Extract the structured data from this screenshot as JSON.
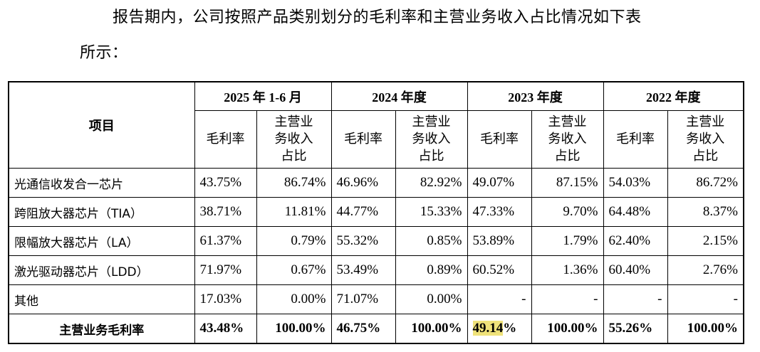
{
  "intro": {
    "line1": "报告期内，公司按照产品类别划分的毛利率和主营业务收入占比情况如下表",
    "line2": "所示："
  },
  "table": {
    "item_header": "项目",
    "periods": [
      "2025 年 1-6 月",
      "2024 年度",
      "2023 年度",
      "2022 年度"
    ],
    "sub_margin": "毛利率",
    "sub_share_lines": [
      "主营业",
      "务收入",
      "占比"
    ],
    "rows": [
      {
        "name": "光通信收发合一芯片",
        "cells": [
          "43.75%",
          "86.74%",
          "46.96%",
          "82.92%",
          "49.07%",
          "87.15%",
          "54.03%",
          "86.72%"
        ]
      },
      {
        "name": "跨阻放大器芯片（TIA）",
        "cells": [
          "38.71%",
          "11.81%",
          "44.77%",
          "15.33%",
          "47.33%",
          "9.70%",
          "64.48%",
          "8.37%"
        ]
      },
      {
        "name": "限幅放大器芯片（LA）",
        "cells": [
          "61.37%",
          "0.79%",
          "55.32%",
          "0.85%",
          "53.89%",
          "1.79%",
          "62.40%",
          "2.15%"
        ]
      },
      {
        "name": "激光驱动器芯片（LDD）",
        "cells": [
          "71.97%",
          "0.67%",
          "53.49%",
          "0.89%",
          "60.52%",
          "1.36%",
          "60.40%",
          "2.76%"
        ]
      },
      {
        "name": "其他",
        "cells": [
          "17.03%",
          "0.00%",
          "71.07%",
          "0.00%",
          "-",
          "-",
          "-",
          "-"
        ]
      }
    ],
    "total": {
      "name": "主营业务毛利率",
      "cells": [
        "43.48%",
        "100.00%",
        "46.75%",
        "100.00%",
        "49.14%",
        "100.00%",
        "55.26%",
        "100.00%"
      ],
      "highlight_text": "49.14",
      "highlight_rest": "%"
    }
  },
  "colors": {
    "highlight": "#efe27a"
  }
}
